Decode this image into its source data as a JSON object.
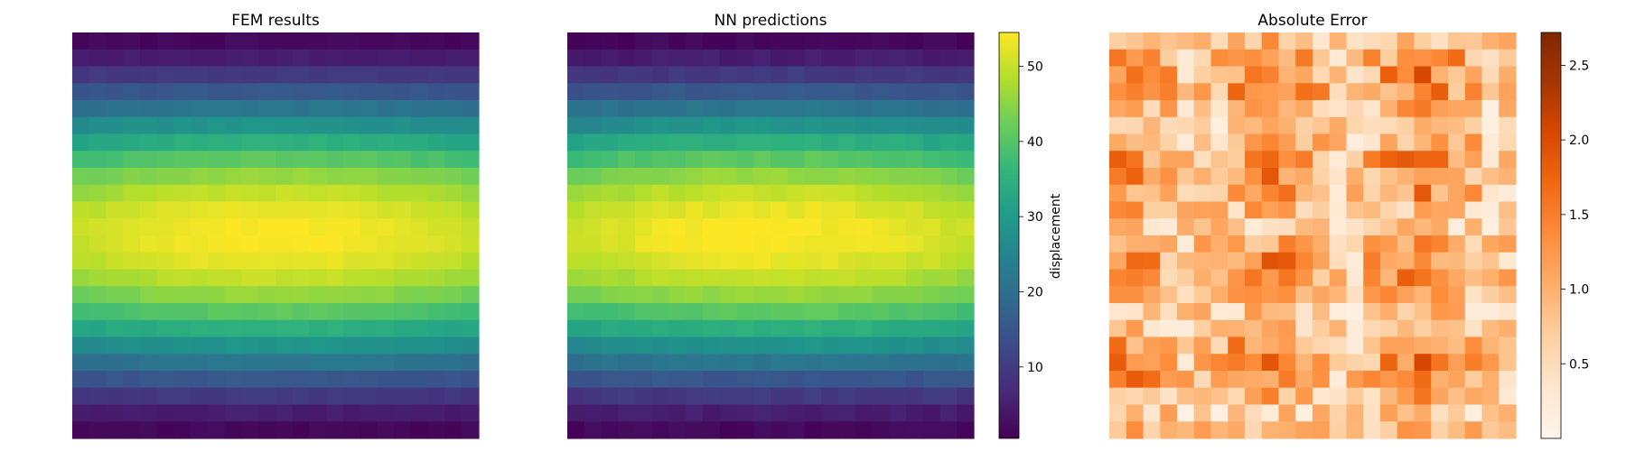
{
  "chart_data": [
    {
      "type": "heatmap",
      "title": "FEM results",
      "field": "displacement",
      "grid": [
        24,
        24
      ],
      "value_range": [
        0.5,
        54
      ],
      "row_profile_description": "values near 2 at top and bottom rows, peaking near 54 in the middle rows",
      "colormap": "viridis",
      "axes_visible": false
    },
    {
      "type": "heatmap",
      "title": "NN predictions",
      "field": "displacement",
      "grid": [
        24,
        24
      ],
      "value_range": [
        0.5,
        54
      ],
      "colormap": "viridis",
      "axes_visible": false,
      "colorbar": {
        "label": "displacement",
        "range": [
          0.5,
          54.5
        ],
        "ticks": [
          10,
          20,
          30,
          40,
          50
        ]
      }
    },
    {
      "type": "heatmap",
      "title": "Absolute Error",
      "grid": [
        24,
        24
      ],
      "value_range": [
        0,
        2.7
      ],
      "colormap": "oranges",
      "axes_visible": false,
      "colorbar": {
        "label": "",
        "range": [
          0.0,
          2.72
        ],
        "ticks": [
          0.5,
          1.0,
          1.5,
          2.0,
          2.5
        ]
      }
    }
  ]
}
